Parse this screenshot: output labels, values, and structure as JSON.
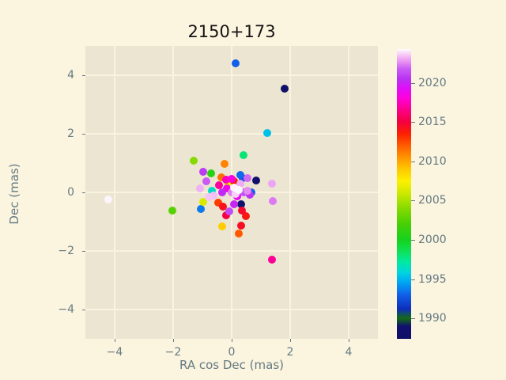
{
  "figure": {
    "background_color": "#fbf4df",
    "axes_background_color": "#ece5d1",
    "grid_color": "#f9f3e0",
    "tick_text_color": "#657b83",
    "title_color": "#141414"
  },
  "chart_data": {
    "type": "scatter",
    "title": "2150+173",
    "xlabel": "RA cos Dec (mas)",
    "ylabel": "Dec (mas)",
    "xlim": [
      -5,
      5
    ],
    "ylim": [
      -5,
      5
    ],
    "xticks": [
      "-4",
      "-2",
      "0",
      "2",
      "4"
    ],
    "xtick_values": [
      -4,
      -2,
      0,
      2,
      4
    ],
    "yticks": [
      "4",
      "2",
      "0",
      "-2",
      "-4"
    ],
    "ytick_values": [
      4,
      2,
      0,
      -2,
      -4
    ],
    "grid": true,
    "legend": "none",
    "colorbar": {
      "position": "right",
      "vmin": 1987.4,
      "vmax": 2024.3,
      "ticks": [
        1990,
        1995,
        2000,
        2005,
        2010,
        2015,
        2020
      ],
      "colormap_anchors": [
        [
          1987.4,
          "#0f0f66"
        ],
        [
          1989.0,
          "#11116f"
        ],
        [
          1990.0,
          "#156b15"
        ],
        [
          1991.2,
          "#0d2ebb"
        ],
        [
          1993.0,
          "#1160e8"
        ],
        [
          1994.5,
          "#00a2f5"
        ],
        [
          1995.8,
          "#00d3e0"
        ],
        [
          1997.2,
          "#00e9a0"
        ],
        [
          1998.6,
          "#0fe053"
        ],
        [
          2000.0,
          "#15d21d"
        ],
        [
          2002.0,
          "#46cf05"
        ],
        [
          2004.0,
          "#85da00"
        ],
        [
          2006.0,
          "#cfe900"
        ],
        [
          2007.5,
          "#fdf000"
        ],
        [
          2009.0,
          "#ffc800"
        ],
        [
          2010.5,
          "#ff9500"
        ],
        [
          2012.0,
          "#ff5d00"
        ],
        [
          2013.5,
          "#fb2100"
        ],
        [
          2015.0,
          "#f3003e"
        ],
        [
          2016.5,
          "#fb0086"
        ],
        [
          2018.0,
          "#ff00d8"
        ],
        [
          2019.3,
          "#e10ef8"
        ],
        [
          2020.5,
          "#b832f2"
        ],
        [
          2021.8,
          "#cb5cf5"
        ],
        [
          2022.8,
          "#eb97f3"
        ],
        [
          2023.6,
          "#f7ccf7"
        ],
        [
          2024.3,
          "#fefcfe"
        ]
      ]
    },
    "points": [
      {
        "ra": 0.14,
        "dec": 4.41,
        "year": 1993.0
      },
      {
        "ra": 1.81,
        "dec": 3.54,
        "year": 1988.0
      },
      {
        "ra": 1.22,
        "dec": 2.03,
        "year": 1995.3
      },
      {
        "ra": 0.41,
        "dec": 1.27,
        "year": 1998.0
      },
      {
        "ra": -4.22,
        "dec": -0.24,
        "year": 2024.2
      },
      {
        "ra": 1.38,
        "dec": -2.3,
        "year": 2016.8
      },
      {
        "ra": -2.03,
        "dec": -0.62,
        "year": 2002.5
      },
      {
        "ra": -1.05,
        "dec": -0.57,
        "year": 1993.6
      },
      {
        "ra": -1.3,
        "dec": 1.08,
        "year": 2004.0
      },
      {
        "ra": -0.24,
        "dec": 0.97,
        "year": 2011.0
      },
      {
        "ra": 1.38,
        "dec": 0.3,
        "year": 2023.0
      },
      {
        "ra": 1.41,
        "dec": -0.3,
        "year": 2022.3
      },
      {
        "ra": -0.97,
        "dec": 0.7,
        "year": 2020.8
      },
      {
        "ra": -0.7,
        "dec": 0.65,
        "year": 2000.8
      },
      {
        "ra": 0.3,
        "dec": 0.59,
        "year": 1993.2
      },
      {
        "ra": 0.38,
        "dec": 0.49,
        "year": 1992.3
      },
      {
        "ra": 0.0,
        "dec": 0.46,
        "year": 2018.3
      },
      {
        "ra": 0.54,
        "dec": 0.49,
        "year": 2022.0
      },
      {
        "ra": 0.84,
        "dec": 0.41,
        "year": 1988.3
      },
      {
        "ra": 0.08,
        "dec": 0.38,
        "year": 2013.8
      },
      {
        "ra": -0.43,
        "dec": 0.24,
        "year": 2016.9
      },
      {
        "ra": -0.86,
        "dec": 0.38,
        "year": 2021.7
      },
      {
        "ra": -1.08,
        "dec": 0.14,
        "year": 2023.2
      },
      {
        "ra": -0.68,
        "dec": 0.05,
        "year": 1996.3
      },
      {
        "ra": -0.35,
        "dec": 0.51,
        "year": 2011.5
      },
      {
        "ra": -0.14,
        "dec": 0.32,
        "year": 2007.0
      },
      {
        "ra": -0.16,
        "dec": 0.14,
        "year": 2018.6
      },
      {
        "ra": -0.32,
        "dec": 0.0,
        "year": 2020.2
      },
      {
        "ra": -0.62,
        "dec": -0.11,
        "year": 2023.4
      },
      {
        "ra": 0.08,
        "dec": 0.16,
        "year": 2024.2
      },
      {
        "ra": 0.24,
        "dec": 0.08,
        "year": 2024.3
      },
      {
        "ra": 0.14,
        "dec": -0.05,
        "year": 2023.7
      },
      {
        "ra": 0.3,
        "dec": 0.3,
        "year": 2023.1
      },
      {
        "ra": 0.0,
        "dec": 0.0,
        "year": 2022.4
      },
      {
        "ra": 0.41,
        "dec": 0.0,
        "year": 2021.5
      },
      {
        "ra": 0.19,
        "dec": -0.14,
        "year": 2019.0
      },
      {
        "ra": 0.54,
        "dec": 0.05,
        "year": 2022.6
      },
      {
        "ra": 0.68,
        "dec": 0.0,
        "year": 1993.0
      },
      {
        "ra": 0.62,
        "dec": -0.08,
        "year": 2020.6
      },
      {
        "ra": -0.97,
        "dec": -0.32,
        "year": 2006.3
      },
      {
        "ra": -0.46,
        "dec": -0.35,
        "year": 2012.8
      },
      {
        "ra": -0.3,
        "dec": -0.49,
        "year": 2014.2
      },
      {
        "ra": 0.08,
        "dec": -0.41,
        "year": 2020.1
      },
      {
        "ra": 0.32,
        "dec": -0.41,
        "year": 1988.6
      },
      {
        "ra": -0.08,
        "dec": -0.65,
        "year": 2021.2
      },
      {
        "ra": 0.35,
        "dec": -0.62,
        "year": 2014.6
      },
      {
        "ra": -0.19,
        "dec": -0.78,
        "year": 2015.1
      },
      {
        "ra": 0.49,
        "dec": -0.81,
        "year": 2013.9
      },
      {
        "ra": -0.32,
        "dec": -1.16,
        "year": 2008.8
      },
      {
        "ra": 0.32,
        "dec": -1.14,
        "year": 2014.4
      },
      {
        "ra": 0.24,
        "dec": -1.41,
        "year": 2012.1
      },
      {
        "ra": -0.19,
        "dec": 0.43,
        "year": 2017.5
      },
      {
        "ra": -0.78,
        "dec": -0.16,
        "year": 2023.5
      }
    ]
  }
}
